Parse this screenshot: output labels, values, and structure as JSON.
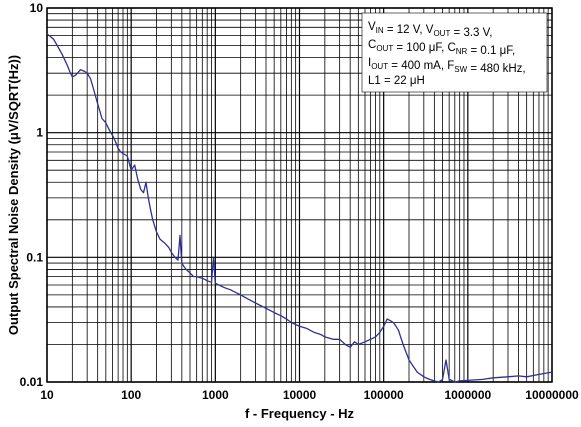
{
  "chart_data": {
    "type": "line",
    "title": "",
    "xlabel": "f - Frequency - Hz",
    "ylabel": "Output Spectral Noise Density (μV/SQRT(Hz))",
    "x_scale": "log",
    "y_scale": "log",
    "xlim": [
      10,
      10000000
    ],
    "ylim": [
      0.01,
      10
    ],
    "x_ticks": [
      "10",
      "100",
      "1000",
      "10000",
      "100000",
      "1000000",
      "10000000"
    ],
    "y_ticks": [
      "0.01",
      "0.1",
      "1",
      "10"
    ],
    "grid": true,
    "line_color": "#2e3192",
    "legend_placement": "top-right",
    "legend": {
      "lines": [
        {
          "parts": [
            {
              "t": "V"
            },
            {
              "t": "IN",
              "sub": true
            },
            {
              "t": " = 12 V, V"
            },
            {
              "t": "OUT",
              "sub": true
            },
            {
              "t": " = 3.3 V,"
            }
          ]
        },
        {
          "parts": [
            {
              "t": "C"
            },
            {
              "t": "OUT",
              "sub": true
            },
            {
              "t": " = 100 μF, C"
            },
            {
              "t": "NR",
              "sub": true
            },
            {
              "t": " = 0.1 μF,"
            }
          ]
        },
        {
          "parts": [
            {
              "t": "I"
            },
            {
              "t": "OUT",
              "sub": true
            },
            {
              "t": " = 400 mA, F"
            },
            {
              "t": "SW",
              "sub": true
            },
            {
              "t": " = 480 kHz,"
            }
          ]
        },
        {
          "parts": [
            {
              "t": "L1 = 22 μH"
            }
          ]
        }
      ]
    },
    "series": [
      {
        "x": [
          10,
          11,
          12,
          13,
          15,
          17,
          19,
          20,
          22,
          25,
          28,
          30,
          33,
          36,
          40,
          45,
          50,
          55,
          60,
          65,
          70,
          75,
          80,
          90,
          100,
          110,
          120,
          130,
          140,
          150,
          160,
          170,
          180,
          200,
          220,
          250,
          280,
          300,
          330,
          360,
          380,
          400,
          420,
          450,
          500,
          550,
          600,
          700,
          800,
          900,
          950,
          1000,
          1100,
          1300,
          1500,
          2000,
          2500,
          3000,
          4000,
          5000,
          6000,
          7000,
          8000,
          10000,
          12000,
          15000,
          18000,
          20000,
          25000,
          30000,
          35000,
          40000,
          45000,
          50000,
          60000,
          70000,
          80000,
          90000,
          100000,
          110000,
          120000,
          130000,
          140000,
          150000,
          170000,
          200000,
          250000,
          300000,
          350000,
          400000,
          450000,
          500000,
          550000,
          600000,
          700000,
          800000,
          1000000,
          1500000,
          2000000,
          3000000,
          4000000,
          5000000,
          7000000,
          10000000
        ],
        "y": [
          6.2,
          5.9,
          5.6,
          5.1,
          4.3,
          3.6,
          3.0,
          2.8,
          2.9,
          3.2,
          3.1,
          3.0,
          2.7,
          2.2,
          1.7,
          1.3,
          1.2,
          1.05,
          0.95,
          0.85,
          0.75,
          0.7,
          0.68,
          0.65,
          0.5,
          0.55,
          0.42,
          0.35,
          0.33,
          0.4,
          0.3,
          0.24,
          0.2,
          0.16,
          0.14,
          0.13,
          0.12,
          0.11,
          0.1,
          0.095,
          0.15,
          0.09,
          0.085,
          0.08,
          0.075,
          0.07,
          0.07,
          0.068,
          0.065,
          0.063,
          0.1,
          0.062,
          0.06,
          0.057,
          0.055,
          0.05,
          0.046,
          0.043,
          0.039,
          0.036,
          0.034,
          0.032,
          0.03,
          0.028,
          0.027,
          0.025,
          0.024,
          0.023,
          0.022,
          0.022,
          0.02,
          0.019,
          0.021,
          0.02,
          0.021,
          0.022,
          0.023,
          0.025,
          0.028,
          0.032,
          0.031,
          0.03,
          0.028,
          0.026,
          0.02,
          0.015,
          0.012,
          0.011,
          0.0105,
          0.0102,
          0.01,
          0.0105,
          0.015,
          0.0105,
          0.01,
          0.0102,
          0.0103,
          0.0105,
          0.0108,
          0.011,
          0.0112,
          0.011,
          0.0115,
          0.012
        ]
      }
    ]
  }
}
